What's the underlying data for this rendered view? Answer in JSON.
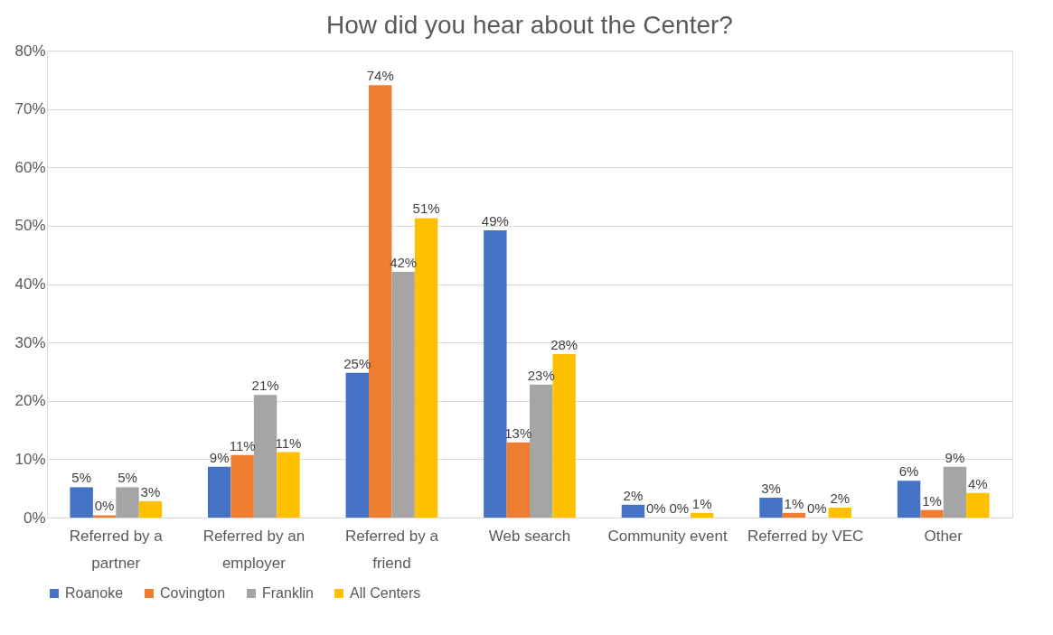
{
  "chart_data": {
    "type": "bar",
    "title": "How did you hear about the Center?",
    "categories": [
      "Referred by a partner",
      "Referred by an employer",
      "Referred by a friend",
      "Web search",
      "Community event",
      "Referred by VEC",
      "Other"
    ],
    "series": [
      {
        "name": "Roanoke",
        "color": "#4472c4",
        "values": [
          5.2,
          8.7,
          24.8,
          49.2,
          2.2,
          3.4,
          6.3
        ],
        "value_labels": [
          "5%",
          "9%",
          "25%",
          "49%",
          "2%",
          "3%",
          "6%"
        ]
      },
      {
        "name": "Covington",
        "color": "#ed7d31",
        "values": [
          0.4,
          10.7,
          74.1,
          12.9,
          0,
          0.8,
          1.3
        ],
        "value_labels": [
          "0%",
          "11%",
          "74%",
          "13%",
          "0%",
          "1%",
          "1%"
        ]
      },
      {
        "name": "Franklin",
        "color": "#a5a5a5",
        "values": [
          5.2,
          21.0,
          42.1,
          22.8,
          0,
          0,
          8.7
        ],
        "value_labels": [
          "5%",
          "21%",
          "42%",
          "23%",
          "0%",
          "0%",
          "9%"
        ]
      },
      {
        "name": "All Centers",
        "color": "#ffc000",
        "values": [
          2.8,
          11.2,
          51.3,
          28.0,
          0.8,
          1.7,
          4.2
        ],
        "value_labels": [
          "3%",
          "11%",
          "51%",
          "28%",
          "1%",
          "2%",
          "4%"
        ]
      }
    ],
    "ylim": [
      0,
      80
    ],
    "yticks": [
      {
        "value": 0,
        "label": "0%"
      },
      {
        "value": 10,
        "label": "10%"
      },
      {
        "value": 20,
        "label": "20%"
      },
      {
        "value": 30,
        "label": "30%"
      },
      {
        "value": 40,
        "label": "40%"
      },
      {
        "value": 50,
        "label": "50%"
      },
      {
        "value": 60,
        "label": "60%"
      },
      {
        "value": 70,
        "label": "70%"
      },
      {
        "value": 80,
        "label": "80%"
      }
    ],
    "grid": "y",
    "legend": "bottom"
  }
}
